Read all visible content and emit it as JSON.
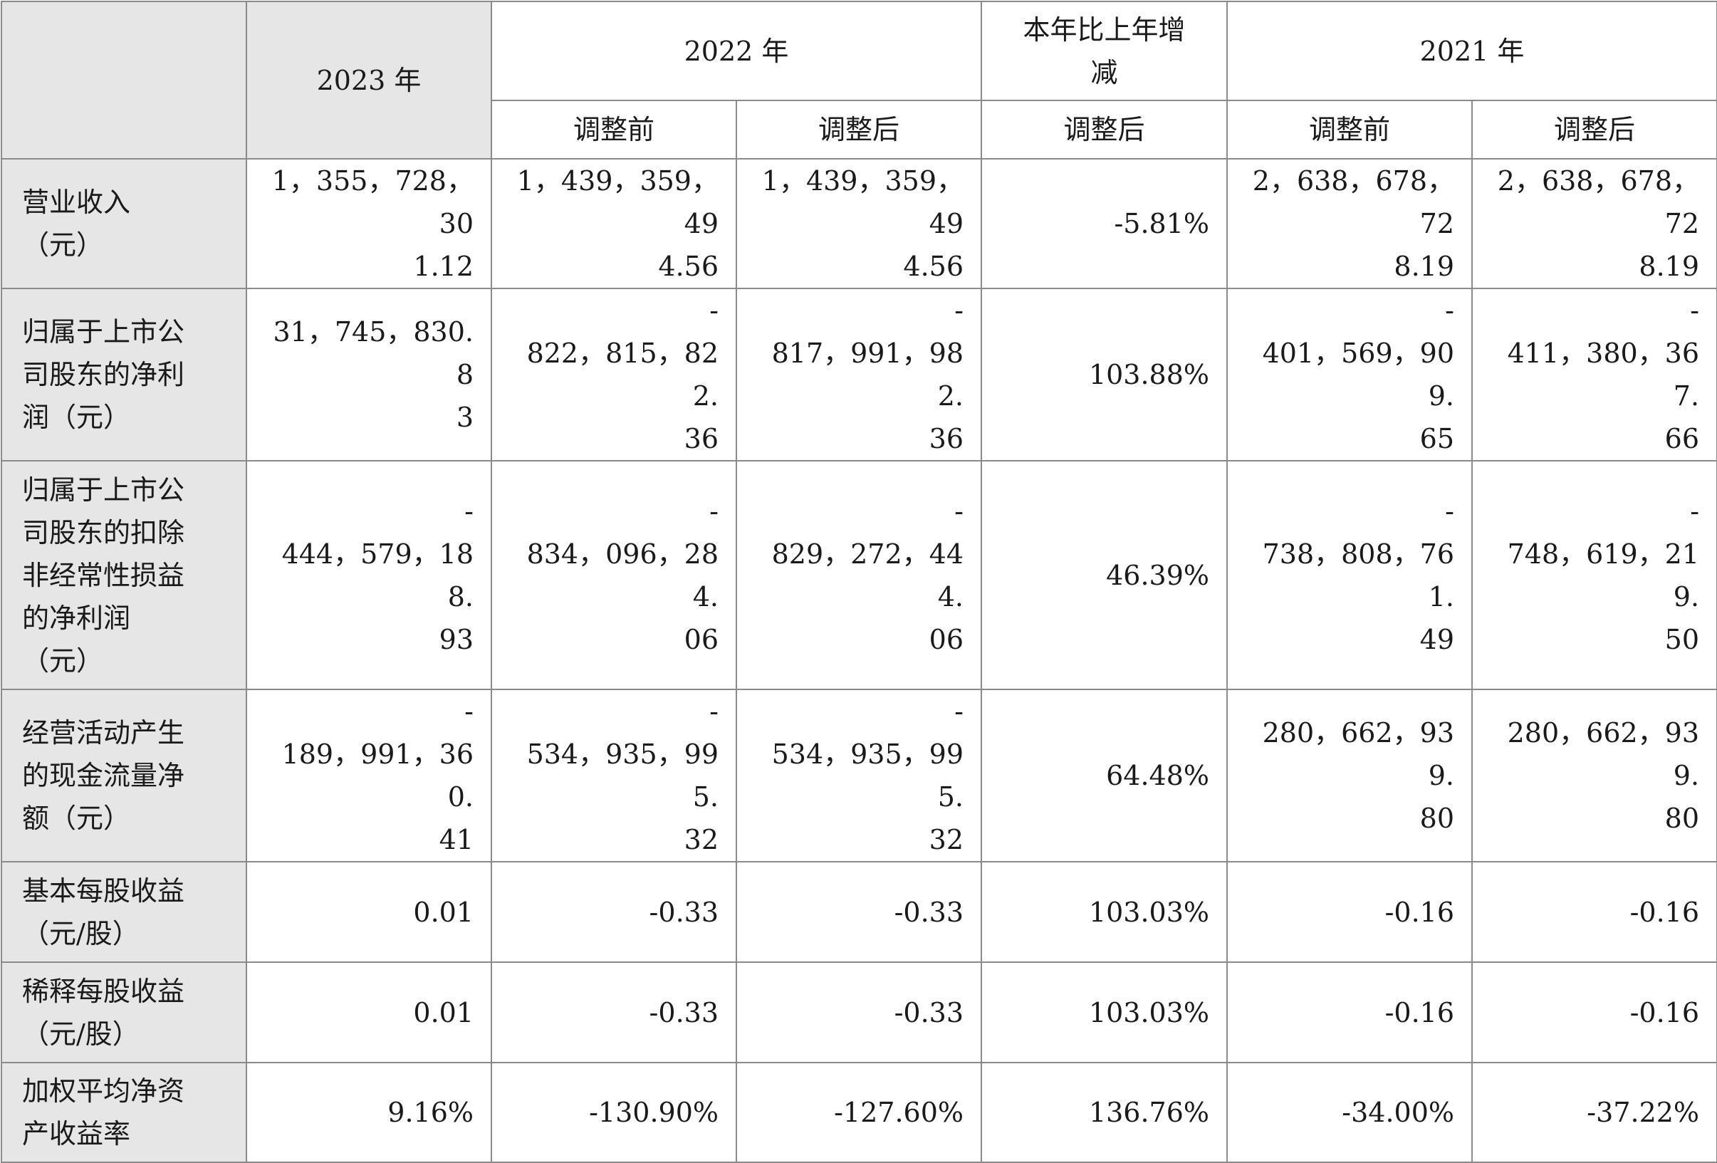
{
  "header": {
    "col_2023": "2023 年",
    "col_2022": "2022 年",
    "col_change": [
      "本年比上年增",
      "减"
    ],
    "col_2021": "2021 年",
    "sub_before_2022": "调整前",
    "sub_after_2022": "调整后",
    "sub_after_change": "调整后",
    "sub_before_2021": "调整前",
    "sub_after_2021": "调整后"
  },
  "rows": [
    {
      "label": [
        "营业收入",
        "（元）"
      ],
      "y2023": [
        "1，355，728，30",
        "1.12"
      ],
      "y2022_before": [
        "1，439，359，49",
        "4.56"
      ],
      "y2022_after": [
        "1，439，359，49",
        "4.56"
      ],
      "change": [
        "-5.81%"
      ],
      "y2021_before": [
        "2，638，678，72",
        "8.19"
      ],
      "y2021_after": [
        "2，638，678，72",
        "8.19"
      ]
    },
    {
      "label": [
        "归属于上市公",
        "司股东的净利",
        "润（元）"
      ],
      "y2023": [
        "31，745，830.8",
        "3"
      ],
      "y2022_before": [
        "-",
        "822，815，822.",
        "36"
      ],
      "y2022_after": [
        "-",
        "817，991，982.",
        "36"
      ],
      "change": [
        "103.88%"
      ],
      "y2021_before": [
        "-",
        "401，569，909.",
        "65"
      ],
      "y2021_after": [
        "-",
        "411，380，367.",
        "66"
      ]
    },
    {
      "label": [
        "归属于上市公",
        "司股东的扣除",
        "非经常性损益",
        "的净利润",
        "（元）"
      ],
      "y2023": [
        "-",
        "444，579，188.",
        "93"
      ],
      "y2022_before": [
        "-",
        "834，096，284.",
        "06"
      ],
      "y2022_after": [
        "-",
        "829，272，444.",
        "06"
      ],
      "change": [
        "46.39%"
      ],
      "y2021_before": [
        "-",
        "738，808，761.",
        "49"
      ],
      "y2021_after": [
        "-",
        "748，619，219.",
        "50"
      ]
    },
    {
      "label": [
        "经营活动产生",
        "的现金流量净",
        "额（元）"
      ],
      "y2023": [
        "-",
        "189，991，360.",
        "41"
      ],
      "y2022_before": [
        "-",
        "534，935，995.",
        "32"
      ],
      "y2022_after": [
        "-",
        "534，935，995.",
        "32"
      ],
      "change": [
        "64.48%"
      ],
      "y2021_before": [
        "280，662，939.",
        "80"
      ],
      "y2021_after": [
        "280，662，939.",
        "80"
      ]
    },
    {
      "label": [
        "基本每股收益",
        "（元/股）"
      ],
      "y2023": [
        "0.01"
      ],
      "y2022_before": [
        "-0.33"
      ],
      "y2022_after": [
        "-0.33"
      ],
      "change": [
        "103.03%"
      ],
      "y2021_before": [
        "-0.16"
      ],
      "y2021_after": [
        "-0.16"
      ]
    },
    {
      "label": [
        "稀释每股收益",
        "（元/股）"
      ],
      "y2023": [
        "0.01"
      ],
      "y2022_before": [
        "-0.33"
      ],
      "y2022_after": [
        "-0.33"
      ],
      "change": [
        "103.03%"
      ],
      "y2021_before": [
        "-0.16"
      ],
      "y2021_after": [
        "-0.16"
      ]
    },
    {
      "label": [
        "加权平均净资",
        "产收益率"
      ],
      "y2023": [
        "9.16%"
      ],
      "y2022_before": [
        "-130.90%"
      ],
      "y2022_after": [
        "-127.60%"
      ],
      "change": [
        "136.76%"
      ],
      "y2021_before": [
        "-34.00%"
      ],
      "y2021_after": [
        "-37.22%"
      ]
    }
  ],
  "colors": {
    "header_fill": "#e6e6e6",
    "border": "#8a8a8a"
  }
}
